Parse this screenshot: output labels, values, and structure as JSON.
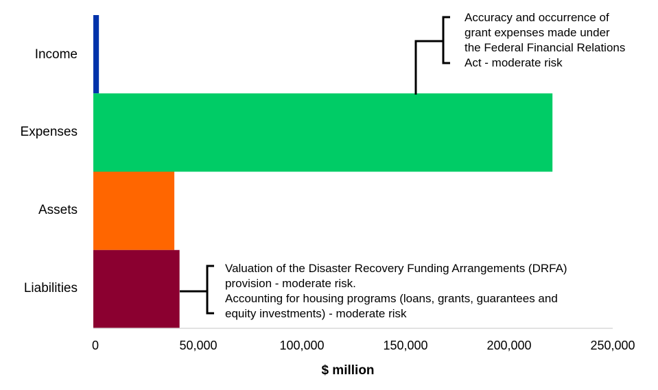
{
  "chart_data": {
    "type": "bar",
    "orientation": "horizontal",
    "categories": [
      "Income",
      "Expenses",
      "Assets",
      "Liabilities"
    ],
    "values": [
      2700,
      221000,
      39000,
      41500
    ],
    "colors": [
      "#0033aa",
      "#00cc66",
      "#ff6600",
      "#8b0030"
    ],
    "title": "",
    "xlabel": "$ million",
    "ylabel": "",
    "xlim": [
      0,
      250000
    ],
    "xticks": [
      "0",
      "50,000",
      "100,000",
      "150,000",
      "200,000",
      "250,000"
    ],
    "xtick_values": [
      0,
      50000,
      100000,
      150000,
      200000,
      250000
    ],
    "grid": false,
    "legend": "none",
    "annotations": [
      {
        "target": "Expenses",
        "lines": [
          "Accuracy and occurrence of",
          "grant expenses made under",
          "the Federal Financial Relations",
          "Act - moderate risk"
        ]
      },
      {
        "target": "Liabilities",
        "lines": [
          "Valuation of the Disaster Recovery Funding Arrangements (DRFA)",
          "provision - moderate risk.",
          "Accounting for housing programs (loans, grants, guarantees and",
          "equity investments) - moderate risk"
        ]
      }
    ]
  }
}
